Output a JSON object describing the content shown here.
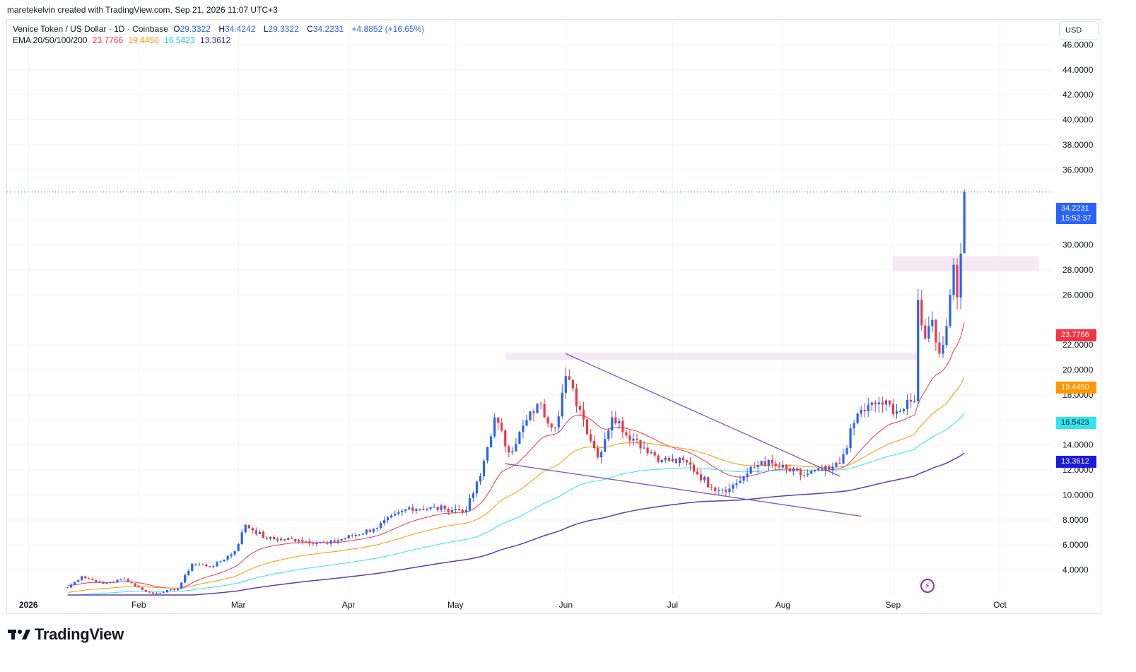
{
  "header": {
    "author_line": "maretekelvin created with TradingView.com, Sep 21, 2026 11:07 UTC+3"
  },
  "legend": {
    "symbol": "Venice Token / US Dollar · 1D · Coinbase",
    "o_label": "O",
    "o_value": "29.3322",
    "h_label": "H",
    "h_value": "34.4242",
    "l_label": "L",
    "l_value": "29.3322",
    "c_label": "C",
    "c_value": "34.2231",
    "change": "+4.8852 (+16.65%)",
    "ema_label": "EMA 20/50/100/200",
    "ema20": "23.7766",
    "ema50": "19.4450",
    "ema100": "16.5423",
    "ema200": "13.3612"
  },
  "currency_button": "USD",
  "price_tags": {
    "last_price": "34.2231",
    "countdown": "15:52:37",
    "ema20": "23.7766",
    "ema50": "19.4450",
    "ema100": "16.5423",
    "ema200": "13.3612"
  },
  "brand": {
    "name": "TradingView"
  },
  "colors": {
    "up": "#2962ff",
    "down": "#f23645",
    "ema20": "#f23645",
    "ema50": "#ff9800",
    "ema100": "#2ee6f0",
    "ema200": "#5b3fb5",
    "trendline": "#7e57c2",
    "zone": "#f3e5f5",
    "lightning": "#9c27b0"
  },
  "chart_data": {
    "type": "candlestick",
    "title": "Venice Token / US Dollar · 1D · Coinbase",
    "y_ticks": [
      "4.0000",
      "6.0000",
      "8.0000",
      "10.0000",
      "12.0000",
      "14.0000",
      "16.0000",
      "18.0000",
      "20.0000",
      "22.0000",
      "26.0000",
      "28.0000",
      "30.0000",
      "32.0000",
      "36.0000",
      "38.0000",
      "40.0000",
      "42.0000",
      "44.0000",
      "46.0000"
    ],
    "x_ticks": [
      {
        "label": "2026",
        "date": "2026-01-01"
      },
      {
        "label": "Feb",
        "date": "2026-02-01"
      },
      {
        "label": "Mar",
        "date": "2026-03-01"
      },
      {
        "label": "Apr",
        "date": "2026-04-01"
      },
      {
        "label": "May",
        "date": "2026-05-01"
      },
      {
        "label": "Jun",
        "date": "2026-06-01"
      },
      {
        "label": "Jul",
        "date": "2026-07-01"
      },
      {
        "label": "Aug",
        "date": "2026-08-01"
      },
      {
        "label": "Sep",
        "date": "2026-09-01"
      },
      {
        "label": "Oct",
        "date": "2026-10-01"
      }
    ],
    "ylim": [
      2.0,
      48.0
    ],
    "xlim": [
      "2025-12-26",
      "2026-10-16"
    ],
    "candles_close_anchors": [
      [
        "2026-01-12",
        2.6
      ],
      [
        "2026-01-16",
        3.5
      ],
      [
        "2026-01-22",
        2.9
      ],
      [
        "2026-01-28",
        3.3
      ],
      [
        "2026-02-02",
        2.4
      ],
      [
        "2026-02-05",
        2.1
      ],
      [
        "2026-02-12",
        2.5
      ],
      [
        "2026-02-16",
        4.5
      ],
      [
        "2026-02-22",
        4.3
      ],
      [
        "2026-02-28",
        5.5
      ],
      [
        "2026-03-03",
        7.6
      ],
      [
        "2026-03-09",
        6.5
      ],
      [
        "2026-03-18",
        6.4
      ],
      [
        "2026-03-26",
        6.1
      ],
      [
        "2026-04-08",
        7.3
      ],
      [
        "2026-04-18",
        9.0
      ],
      [
        "2026-04-28",
        8.9
      ],
      [
        "2026-05-04",
        8.8
      ],
      [
        "2026-05-08",
        11.5
      ],
      [
        "2026-05-12",
        16.2
      ],
      [
        "2026-05-16",
        13.4
      ],
      [
        "2026-05-24",
        17.3
      ],
      [
        "2026-05-29",
        15.4
      ],
      [
        "2026-06-01",
        19.5
      ],
      [
        "2026-06-05",
        16.8
      ],
      [
        "2026-06-10",
        13.0
      ],
      [
        "2026-06-14",
        16.2
      ],
      [
        "2026-06-20",
        14.5
      ],
      [
        "2026-06-28",
        12.8
      ],
      [
        "2026-07-05",
        12.6
      ],
      [
        "2026-07-12",
        10.6
      ],
      [
        "2026-07-17",
        10.5
      ],
      [
        "2026-07-22",
        11.7
      ],
      [
        "2026-07-26",
        12.7
      ],
      [
        "2026-07-30",
        12.3
      ],
      [
        "2026-08-06",
        11.6
      ],
      [
        "2026-08-14",
        12.0
      ],
      [
        "2026-08-17",
        12.5
      ],
      [
        "2026-08-22",
        16.5
      ],
      [
        "2026-08-28",
        17.4
      ],
      [
        "2026-09-03",
        16.7
      ],
      [
        "2026-09-07",
        17.5
      ],
      [
        "2026-09-08",
        25.6
      ],
      [
        "2026-09-10",
        22.5
      ],
      [
        "2026-09-12",
        24.0
      ],
      [
        "2026-09-14",
        21.3
      ],
      [
        "2026-09-16",
        23.5
      ],
      [
        "2026-09-18",
        28.4
      ],
      [
        "2026-09-19",
        25.8
      ],
      [
        "2026-09-20",
        29.3
      ],
      [
        "2026-09-21",
        34.2231
      ]
    ],
    "last_candle": {
      "date": "2026-09-21",
      "open": 29.3322,
      "high": 34.4242,
      "low": 29.3322,
      "close": 34.2231
    },
    "series": [
      {
        "name": "EMA 20",
        "last": 23.7766
      },
      {
        "name": "EMA 50",
        "last": 19.445
      },
      {
        "name": "EMA 100",
        "last": 16.5423
      },
      {
        "name": "EMA 200",
        "last": 13.3612
      }
    ],
    "annotations": {
      "trendline_upper": [
        [
          "2026-06-01",
          21.3
        ],
        [
          "2026-08-17",
          11.5
        ]
      ],
      "trendline_lower": [
        [
          "2026-05-15",
          12.5
        ],
        [
          "2026-08-23",
          8.3
        ]
      ],
      "zone_upper": {
        "from": "2026-09-01",
        "to": "2026-10-12",
        "y": [
          27.9,
          29.1
        ]
      },
      "zone_lower": {
        "from": "2026-05-15",
        "to": "2026-09-08",
        "y": [
          20.8,
          21.4
        ]
      }
    },
    "grid": true,
    "legend_position": "top-left"
  }
}
